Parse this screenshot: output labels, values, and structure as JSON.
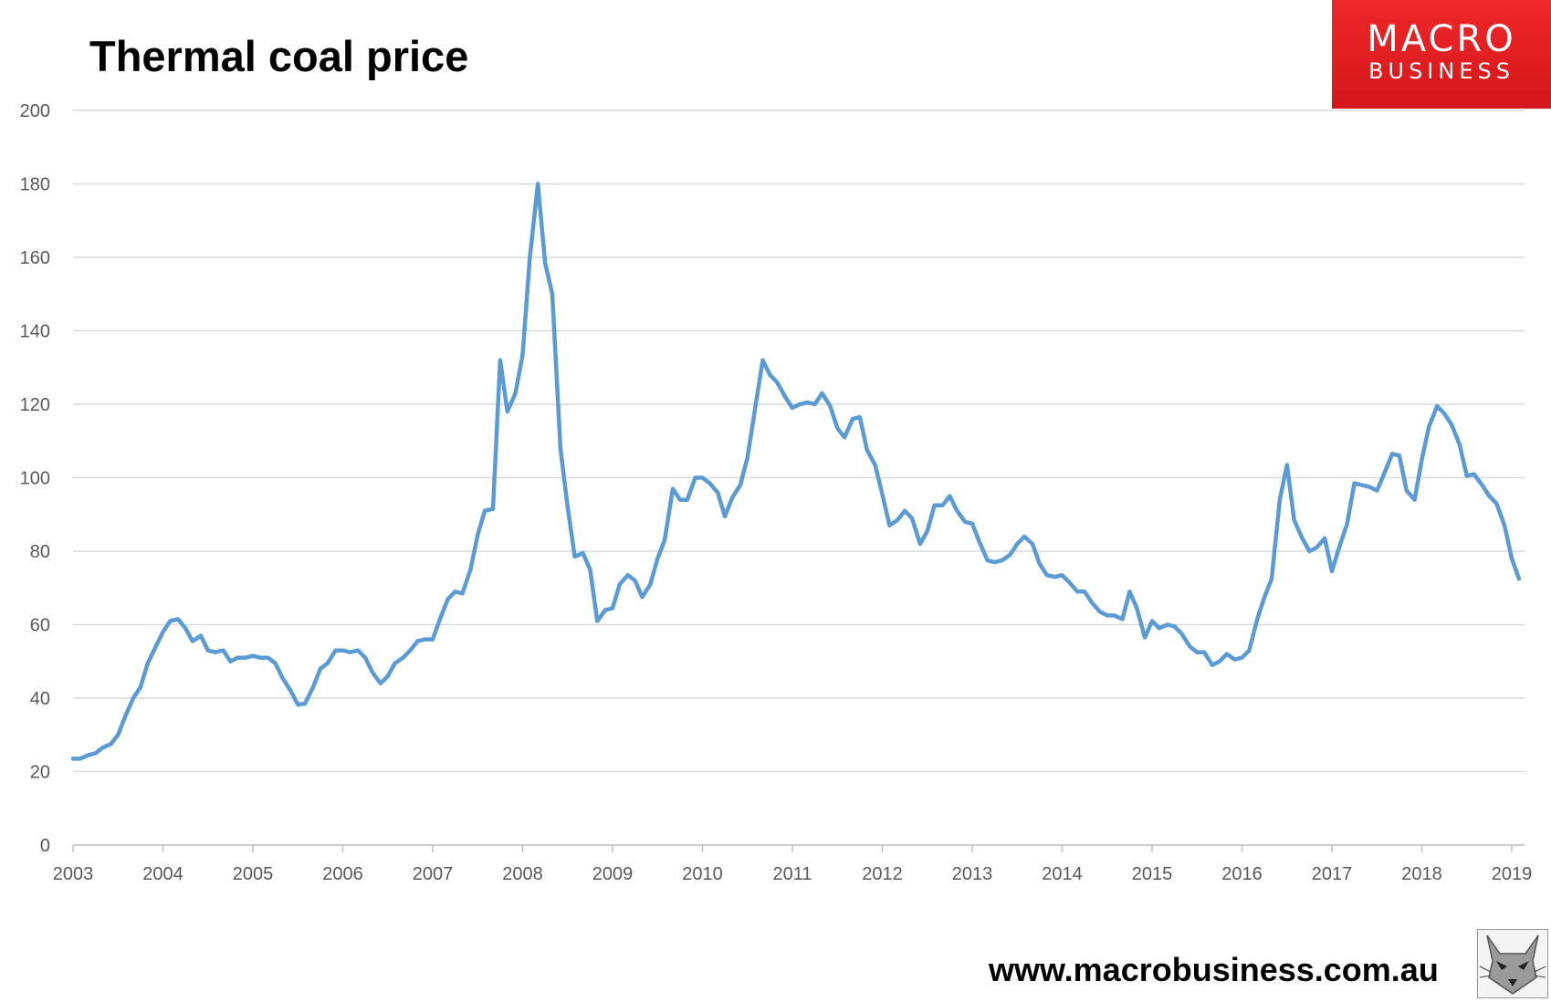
{
  "title": "Thermal coal price",
  "logo": {
    "line1": "MACRO",
    "line2": "BUSINESS"
  },
  "footer_url": "www.macrobusiness.com.au",
  "colors": {
    "line": "#5b9bd5",
    "grid": "#d9d9d9",
    "logo_red": "#e31e24",
    "axis_text": "#595959"
  },
  "mascot_icon": "wolf-icon",
  "chart_data": {
    "type": "line",
    "title": "Thermal coal price",
    "xlabel": "",
    "ylabel": "",
    "ylim": [
      0,
      200
    ],
    "xlim": [
      2003.0,
      2019.17
    ],
    "grid": true,
    "y_ticks": [
      "0",
      "20",
      "40",
      "60",
      "80",
      "100",
      "120",
      "140",
      "160",
      "180",
      "200"
    ],
    "x_ticks": [
      "2003",
      "2004",
      "2005",
      "2006",
      "2007",
      "2008",
      "2009",
      "2010",
      "2011",
      "2012",
      "2013",
      "2014",
      "2015",
      "2016",
      "2017",
      "2018",
      "2019"
    ],
    "series": [
      {
        "points": [
          [
            2003.0,
            23.5
          ],
          [
            2003.08,
            23.5
          ],
          [
            2003.17,
            24.5
          ],
          [
            2003.25,
            25.0
          ],
          [
            2003.33,
            26.5
          ],
          [
            2003.42,
            27.5
          ],
          [
            2003.5,
            30
          ],
          [
            2003.58,
            35
          ],
          [
            2003.67,
            40
          ],
          [
            2003.75,
            43
          ],
          [
            2003.83,
            49.5
          ],
          [
            2003.92,
            54
          ],
          [
            2004.0,
            58
          ],
          [
            2004.08,
            61
          ],
          [
            2004.17,
            61.5
          ],
          [
            2004.25,
            59
          ],
          [
            2004.33,
            55.5
          ],
          [
            2004.42,
            57
          ],
          [
            2004.5,
            53
          ],
          [
            2004.58,
            52.5
          ],
          [
            2004.67,
            53
          ],
          [
            2004.75,
            50
          ],
          [
            2004.83,
            51
          ],
          [
            2004.92,
            51
          ],
          [
            2005.0,
            51.5
          ],
          [
            2005.08,
            51
          ],
          [
            2005.17,
            51
          ],
          [
            2005.25,
            49.5
          ],
          [
            2005.33,
            45.5
          ],
          [
            2005.42,
            42
          ],
          [
            2005.5,
            38.2
          ],
          [
            2005.58,
            38.5
          ],
          [
            2005.67,
            43
          ],
          [
            2005.75,
            48
          ],
          [
            2005.83,
            49.5
          ],
          [
            2005.92,
            53
          ],
          [
            2006.0,
            53
          ],
          [
            2006.08,
            52.5
          ],
          [
            2006.17,
            53
          ],
          [
            2006.25,
            51
          ],
          [
            2006.33,
            47
          ],
          [
            2006.42,
            44
          ],
          [
            2006.5,
            46
          ],
          [
            2006.58,
            49.5
          ],
          [
            2006.67,
            51
          ],
          [
            2006.75,
            53
          ],
          [
            2006.83,
            55.5
          ],
          [
            2006.92,
            56
          ],
          [
            2007.0,
            56
          ],
          [
            2007.08,
            61.5
          ],
          [
            2007.17,
            67
          ],
          [
            2007.25,
            69
          ],
          [
            2007.33,
            68.5
          ],
          [
            2007.42,
            75
          ],
          [
            2007.5,
            84.5
          ],
          [
            2007.58,
            91
          ],
          [
            2007.67,
            91.5
          ],
          [
            2007.75,
            132
          ],
          [
            2007.83,
            118
          ],
          [
            2007.92,
            123
          ],
          [
            2008.0,
            133.5
          ],
          [
            2008.08,
            160
          ],
          [
            2008.17,
            180
          ],
          [
            2008.25,
            158.5
          ],
          [
            2008.33,
            150
          ],
          [
            2008.42,
            108
          ],
          [
            2008.5,
            92
          ],
          [
            2008.58,
            78.5
          ],
          [
            2008.67,
            79.5
          ],
          [
            2008.75,
            75
          ],
          [
            2008.83,
            61
          ],
          [
            2008.92,
            64
          ],
          [
            2009.0,
            64.5
          ],
          [
            2009.08,
            71
          ],
          [
            2009.17,
            73.5
          ],
          [
            2009.25,
            72
          ],
          [
            2009.33,
            67.5
          ],
          [
            2009.42,
            71
          ],
          [
            2009.5,
            78
          ],
          [
            2009.58,
            83
          ],
          [
            2009.67,
            97
          ],
          [
            2009.75,
            94
          ],
          [
            2009.83,
            94
          ],
          [
            2009.92,
            100
          ],
          [
            2010.0,
            100
          ],
          [
            2010.08,
            98.5
          ],
          [
            2010.17,
            96
          ],
          [
            2010.25,
            89.5
          ],
          [
            2010.33,
            94.5
          ],
          [
            2010.42,
            98
          ],
          [
            2010.5,
            105.5
          ],
          [
            2010.58,
            118
          ],
          [
            2010.67,
            132
          ],
          [
            2010.75,
            128
          ],
          [
            2010.83,
            126
          ],
          [
            2010.92,
            122
          ],
          [
            2011.0,
            119
          ],
          [
            2011.08,
            120
          ],
          [
            2011.17,
            120.5
          ],
          [
            2011.25,
            120
          ],
          [
            2011.33,
            123
          ],
          [
            2011.42,
            119.5
          ],
          [
            2011.5,
            113.5
          ],
          [
            2011.58,
            111
          ],
          [
            2011.67,
            116
          ],
          [
            2011.75,
            116.5
          ],
          [
            2011.83,
            107.5
          ],
          [
            2011.92,
            103.5
          ],
          [
            2012.0,
            95.5
          ],
          [
            2012.08,
            87
          ],
          [
            2012.17,
            88.5
          ],
          [
            2012.25,
            91
          ],
          [
            2012.33,
            89
          ],
          [
            2012.42,
            82
          ],
          [
            2012.5,
            85.5
          ],
          [
            2012.58,
            92.5
          ],
          [
            2012.67,
            92.5
          ],
          [
            2012.75,
            95
          ],
          [
            2012.83,
            91
          ],
          [
            2012.92,
            88
          ],
          [
            2013.0,
            87.5
          ],
          [
            2013.08,
            82.5
          ],
          [
            2013.17,
            77.5
          ],
          [
            2013.25,
            77
          ],
          [
            2013.33,
            77.5
          ],
          [
            2013.42,
            79
          ],
          [
            2013.5,
            82
          ],
          [
            2013.58,
            84
          ],
          [
            2013.67,
            82
          ],
          [
            2013.75,
            76.5
          ],
          [
            2013.83,
            73.5
          ],
          [
            2013.92,
            73
          ],
          [
            2014.0,
            73.5
          ],
          [
            2014.08,
            71.5
          ],
          [
            2014.17,
            69
          ],
          [
            2014.25,
            69
          ],
          [
            2014.33,
            66
          ],
          [
            2014.42,
            63.5
          ],
          [
            2014.5,
            62.5
          ],
          [
            2014.58,
            62.5
          ],
          [
            2014.67,
            61.5
          ],
          [
            2014.75,
            69
          ],
          [
            2014.83,
            64.5
          ],
          [
            2014.92,
            56.5
          ],
          [
            2015.0,
            61
          ],
          [
            2015.08,
            59
          ],
          [
            2015.17,
            60
          ],
          [
            2015.25,
            59.5
          ],
          [
            2015.33,
            57.5
          ],
          [
            2015.42,
            54
          ],
          [
            2015.5,
            52.5
          ],
          [
            2015.58,
            52.5
          ],
          [
            2015.67,
            49
          ],
          [
            2015.75,
            50
          ],
          [
            2015.83,
            52
          ],
          [
            2015.92,
            50.5
          ],
          [
            2016.0,
            51
          ],
          [
            2016.08,
            53
          ],
          [
            2016.17,
            61.5
          ],
          [
            2016.25,
            67.5
          ],
          [
            2016.33,
            72.5
          ],
          [
            2016.42,
            94
          ],
          [
            2016.5,
            103.5
          ],
          [
            2016.58,
            88.5
          ],
          [
            2016.67,
            83.5
          ],
          [
            2016.75,
            80
          ],
          [
            2016.83,
            81
          ],
          [
            2016.92,
            83.5
          ],
          [
            2017.0,
            74.5
          ],
          [
            2017.08,
            81
          ],
          [
            2017.17,
            87.5
          ],
          [
            2017.25,
            98.5
          ],
          [
            2017.33,
            98
          ],
          [
            2017.42,
            97.5
          ],
          [
            2017.5,
            96.5
          ],
          [
            2017.58,
            101
          ],
          [
            2017.67,
            106.5
          ],
          [
            2017.75,
            106
          ],
          [
            2017.83,
            96.5
          ],
          [
            2017.92,
            94
          ],
          [
            2018.0,
            105
          ],
          [
            2018.08,
            114
          ],
          [
            2018.17,
            119.5
          ],
          [
            2018.25,
            117.5
          ],
          [
            2018.33,
            114.5
          ],
          [
            2018.42,
            109
          ],
          [
            2018.5,
            100.5
          ],
          [
            2018.58,
            101
          ],
          [
            2018.67,
            98
          ],
          [
            2018.75,
            95
          ],
          [
            2018.83,
            93
          ],
          [
            2018.92,
            87
          ],
          [
            2019.0,
            78
          ],
          [
            2019.08,
            72.5
          ]
        ]
      }
    ]
  }
}
